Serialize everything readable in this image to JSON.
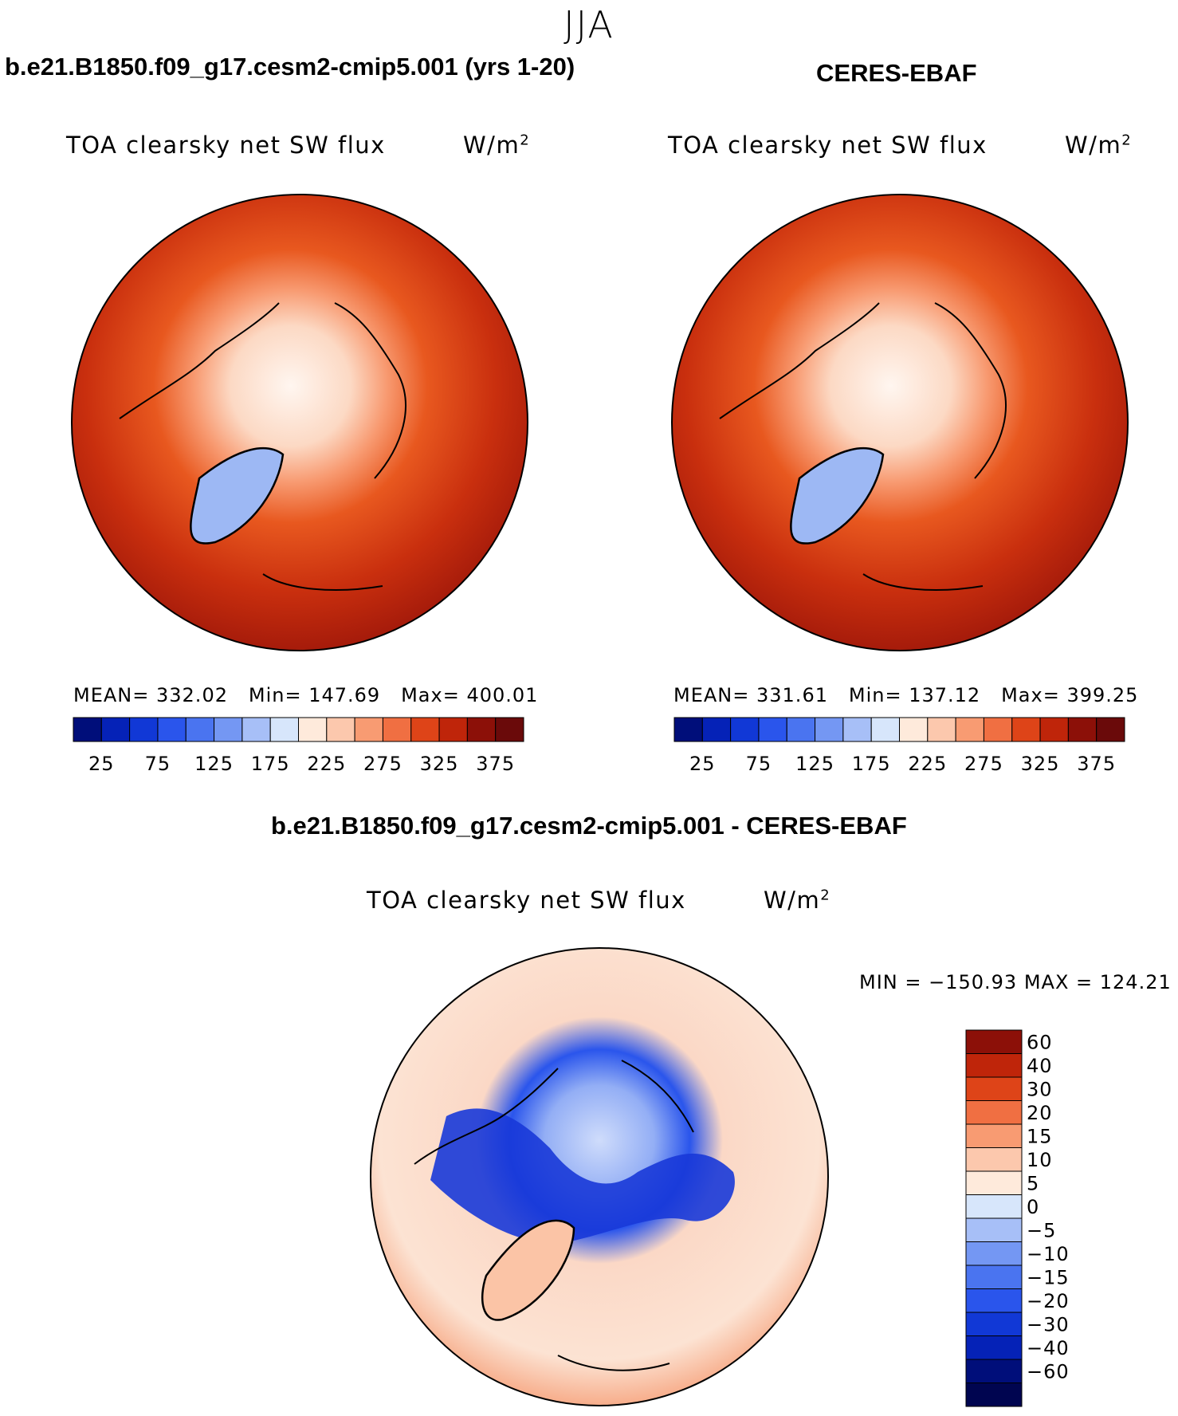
{
  "season": "JJA",
  "panels": [
    {
      "title": "b.e21.B1850.f09_g17.cesm2-cmip5.001 (yrs 1-20)",
      "variable": "TOA clearsky net SW flux",
      "units_base": "W/m",
      "units_exp": "2",
      "mean_label": "MEAN=",
      "mean": "332.02",
      "min_label": "Min=",
      "min": "147.69",
      "max_label": "Max=",
      "max": "400.01"
    },
    {
      "title": "CERES-EBAF",
      "variable": "TOA clearsky net SW flux",
      "units_base": "W/m",
      "units_exp": "2",
      "mean_label": "MEAN=",
      "mean": "331.61",
      "min_label": "Min=",
      "min": "137.12",
      "max_label": "Max=",
      "max": "399.25"
    }
  ],
  "diff_panel": {
    "title": "b.e21.B1850.f09_g17.cesm2-cmip5.001 - CERES-EBAF",
    "variable": "TOA clearsky net SW flux",
    "units_base": "W/m",
    "units_exp": "2",
    "minmax": "MIN = −150.93 MAX = 124.21"
  },
  "chart_data": [
    {
      "type": "heatmap",
      "projection": "polar-stereographic (north pole)",
      "title": "b.e21.B1850.f09_g17.cesm2-cmip5.001 (yrs 1-20)",
      "variable": "TOA clearsky net SW flux",
      "units": "W/m2",
      "stats": {
        "mean": 332.02,
        "min": 147.69,
        "max": 400.01
      },
      "colorbar": {
        "ticks": [
          "25",
          "75",
          "125",
          "175",
          "225",
          "275",
          "325",
          "375"
        ],
        "levels": [
          25,
          50,
          75,
          100,
          125,
          150,
          175,
          200,
          225,
          250,
          275,
          300,
          325,
          350,
          375
        ],
        "colors": [
          "#000e7a",
          "#0522b7",
          "#1138d6",
          "#2a55ec",
          "#4a74f0",
          "#7497f3",
          "#a7bff7",
          "#d7e6fb",
          "#feeadb",
          "#fcc8ad",
          "#f89b72",
          "#f06f42",
          "#de4418",
          "#bf250a",
          "#8c1008",
          "#6a0a0a"
        ]
      }
    },
    {
      "type": "heatmap",
      "projection": "polar-stereographic (north pole)",
      "title": "CERES-EBAF",
      "variable": "TOA clearsky net SW flux",
      "units": "W/m2",
      "stats": {
        "mean": 331.61,
        "min": 137.12,
        "max": 399.25
      },
      "colorbar": {
        "ticks": [
          "25",
          "75",
          "125",
          "175",
          "225",
          "275",
          "325",
          "375"
        ],
        "levels": [
          25,
          50,
          75,
          100,
          125,
          150,
          175,
          200,
          225,
          250,
          275,
          300,
          325,
          350,
          375
        ],
        "colors": [
          "#000e7a",
          "#0522b7",
          "#1138d6",
          "#2a55ec",
          "#4a74f0",
          "#7497f3",
          "#a7bff7",
          "#d7e6fb",
          "#feeadb",
          "#fcc8ad",
          "#f89b72",
          "#f06f42",
          "#de4418",
          "#bf250a",
          "#8c1008",
          "#6a0a0a"
        ]
      }
    },
    {
      "type": "heatmap",
      "projection": "polar-stereographic (north pole)",
      "title": "b.e21.B1850.f09_g17.cesm2-cmip5.001 - CERES-EBAF",
      "variable": "TOA clearsky net SW flux",
      "units": "W/m2",
      "stats": {
        "min": -150.93,
        "max": 124.21
      },
      "colorbar": {
        "ticks": [
          "60",
          "40",
          "30",
          "20",
          "15",
          "10",
          "5",
          "0",
          "−5",
          "−10",
          "−15",
          "−20",
          "−30",
          "−40",
          "−60"
        ],
        "levels": [
          60,
          40,
          30,
          20,
          15,
          10,
          5,
          0,
          -5,
          -10,
          -15,
          -20,
          -30,
          -40,
          -60
        ],
        "colors": [
          "#8c1008",
          "#bf250a",
          "#de4418",
          "#f06f42",
          "#f89b72",
          "#fcc8ad",
          "#feeadb",
          "#d7e6fb",
          "#a7bff7",
          "#7497f3",
          "#4a74f0",
          "#2a55ec",
          "#1138d6",
          "#0522b7",
          "#000e7a",
          "#000550"
        ]
      }
    }
  ]
}
